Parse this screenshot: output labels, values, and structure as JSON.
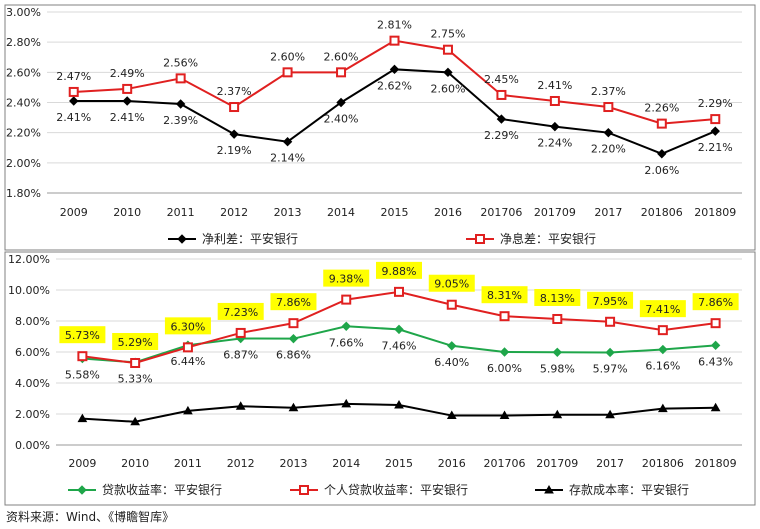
{
  "source_text": "资料来源：Wind、《博瞻智库》",
  "chart_data": [
    {
      "type": "line",
      "categories": [
        "2009",
        "2010",
        "2011",
        "2012",
        "2013",
        "2014",
        "2015",
        "2016",
        "201706",
        "201709",
        "2017",
        "201806",
        "201809"
      ],
      "ylim": [
        1.8,
        3.0
      ],
      "yticks": [
        "1.80%",
        "2.00%",
        "2.20%",
        "2.40%",
        "2.60%",
        "2.80%",
        "3.00%"
      ],
      "grid": true,
      "legend_position": "bottom",
      "series": [
        {
          "name": "净利差：平安银行",
          "color": "#000000",
          "marker": "diamond",
          "label_position": "below",
          "values": [
            2.41,
            2.41,
            2.39,
            2.19,
            2.14,
            2.4,
            2.62,
            2.6,
            2.29,
            2.24,
            2.2,
            2.06,
            2.21
          ],
          "labels": [
            "2.41%",
            "2.41%",
            "2.39%",
            "2.19%",
            "2.14%",
            "2.40%",
            "2.62%",
            "2.60%",
            "2.29%",
            "2.24%",
            "2.20%",
            "2.06%",
            "2.21%"
          ]
        },
        {
          "name": "净息差：平安银行",
          "color": "#e02020",
          "marker": "square",
          "label_position": "above",
          "values": [
            2.47,
            2.49,
            2.56,
            2.37,
            2.6,
            2.6,
            2.81,
            2.75,
            2.45,
            2.41,
            2.37,
            2.26,
            2.29
          ],
          "labels": [
            "2.47%",
            "2.49%",
            "2.56%",
            "2.37%",
            "2.60%",
            "2.60%",
            "2.81%",
            "2.75%",
            "2.45%",
            "2.41%",
            "2.37%",
            "2.26%",
            "2.29%"
          ]
        }
      ]
    },
    {
      "type": "line",
      "categories": [
        "2009",
        "2010",
        "2011",
        "2012",
        "2013",
        "2014",
        "2015",
        "2016",
        "201706",
        "201709",
        "2017",
        "201806",
        "201809"
      ],
      "ylim": [
        0,
        12
      ],
      "yticks": [
        "0.00%",
        "2.00%",
        "4.00%",
        "6.00%",
        "8.00%",
        "10.00%",
        "12.00%"
      ],
      "grid": true,
      "legend_position": "bottom",
      "series": [
        {
          "name": "贷款收益率：平安银行",
          "color": "#1fa64a",
          "marker": "diamond",
          "label_position": "below",
          "values": [
            5.58,
            5.33,
            6.44,
            6.87,
            6.86,
            7.66,
            7.46,
            6.4,
            6.0,
            5.98,
            5.97,
            6.16,
            6.43
          ],
          "labels": [
            "5.58%",
            "5.33%",
            "6.44%",
            "6.87%",
            "6.86%",
            "7.66%",
            "7.46%",
            "6.40%",
            "6.00%",
            "5.98%",
            "5.97%",
            "6.16%",
            "6.43%"
          ]
        },
        {
          "name": "个人贷款收益率：平安银行",
          "color": "#e02020",
          "marker": "square",
          "label_position": "above-highlight",
          "highlight_color": "#ffff00",
          "values": [
            5.73,
            5.29,
            6.3,
            7.23,
            7.86,
            9.38,
            9.88,
            9.05,
            8.31,
            8.13,
            7.95,
            7.41,
            7.86
          ],
          "labels": [
            "5.73%",
            "5.29%",
            "6.30%",
            "7.23%",
            "7.86%",
            "9.38%",
            "9.88%",
            "9.05%",
            "8.31%",
            "8.13%",
            "7.95%",
            "7.41%",
            "7.86%"
          ]
        },
        {
          "name": "存款成本率：平安银行",
          "color": "#000000",
          "marker": "triangle",
          "label_position": "none",
          "values": [
            1.7,
            1.5,
            2.2,
            2.5,
            2.4,
            2.65,
            2.58,
            1.9,
            1.9,
            1.95,
            1.95,
            2.35,
            2.4
          ]
        }
      ]
    }
  ]
}
